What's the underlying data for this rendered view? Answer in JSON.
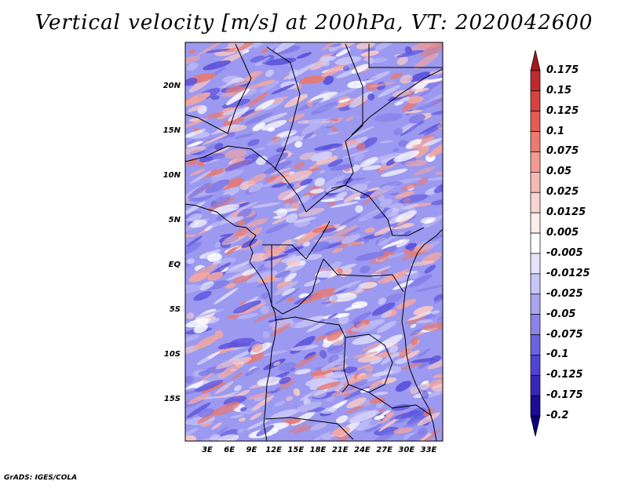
{
  "title": "Vertical velocity [m/s] at 200hPa, VT: 2020042600",
  "credit": "GrADS: IGES/COLA",
  "lat_labels": [
    "20N",
    "15N",
    "10N",
    "5N",
    "EQ",
    "5S",
    "10S",
    "15S"
  ],
  "lon_labels": [
    "3E",
    "6E",
    "9E",
    "12E",
    "15E",
    "18E",
    "21E",
    "24E",
    "27E",
    "30E",
    "33E"
  ],
  "colorbar": {
    "labels": [
      "0.175",
      "0.15",
      "0.125",
      "0.1",
      "0.075",
      "0.05",
      "0.025",
      "0.0125",
      "0.005",
      "-0.005",
      "-0.0125",
      "-0.025",
      "-0.05",
      "-0.075",
      "-0.1",
      "-0.125",
      "-0.175",
      "-0.2"
    ],
    "colors": [
      "#a5181b",
      "#c02a2e",
      "#d6423f",
      "#e45c54",
      "#ec7a72",
      "#f29b93",
      "#f6b9b3",
      "#fad4cf",
      "#fdecea",
      "#ffffff",
      "#e6e3fc",
      "#cac5f8",
      "#aaa5f2",
      "#8a84ea",
      "#6b63e0",
      "#4f45d2",
      "#3528b8",
      "#1c0c96",
      "#0c0080"
    ]
  },
  "colors": {
    "positive": "#e0524f",
    "negative": "#5a56e0",
    "border": "#000000"
  }
}
